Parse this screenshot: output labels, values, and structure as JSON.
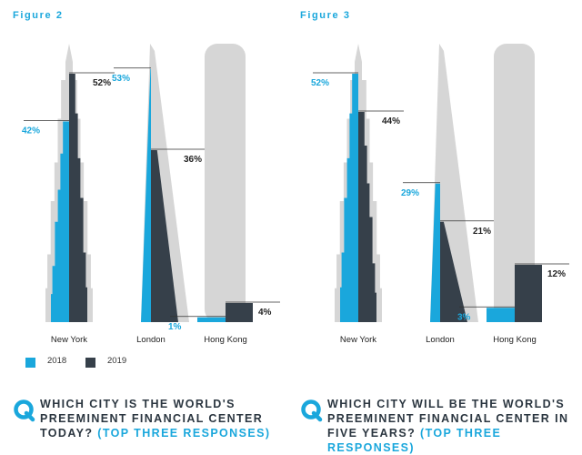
{
  "colors": {
    "series_2018": "#1aa7dc",
    "series_2019": "#36404a",
    "silhouette": "#d6d6d6",
    "accent": "#1aa7dc",
    "text": "#2b3640"
  },
  "legend": [
    {
      "label": "2018",
      "color": "#1aa7dc"
    },
    {
      "label": "2019",
      "color": "#36404a"
    }
  ],
  "questions": [
    {
      "icon": "q-icon",
      "line1": "WHICH CITY IS THE WORLD'S",
      "line2": "PREEMINENT FINANCIAL CENTER",
      "line3_a": "TODAY? ",
      "line3_b": "(TOP THREE RESPONSES)"
    },
    {
      "icon": "q-icon",
      "line1": "WHICH CITY WILL BE THE WORLD'S",
      "line2": "PREEMINENT FINANCIAL CENTER IN",
      "line3_a": "FIVE YEARS? ",
      "line3_b": "(TOP THREE RESPONSES)"
    }
  ],
  "chart_data": [
    {
      "type": "bar",
      "figure_label": "Figure 2",
      "categories": [
        "New York",
        "London",
        "Hong Kong"
      ],
      "series": [
        {
          "name": "2018",
          "values": [
            42,
            53,
            1
          ],
          "labels": [
            "42%",
            "53%",
            "1%"
          ]
        },
        {
          "name": "2019",
          "values": [
            52,
            36,
            4
          ],
          "labels": [
            "52%",
            "36%",
            "4%"
          ]
        }
      ],
      "unit": "%",
      "ylim": [
        0,
        100
      ],
      "grid": false,
      "legend_position": "bottom-left"
    },
    {
      "type": "bar",
      "figure_label": "Figure 3",
      "categories": [
        "New York",
        "London",
        "Hong Kong"
      ],
      "series": [
        {
          "name": "2018",
          "values": [
            52,
            29,
            3
          ],
          "labels": [
            "52%",
            "29%",
            "3%"
          ]
        },
        {
          "name": "2019",
          "values": [
            44,
            21,
            12
          ],
          "labels": [
            "44%",
            "21%",
            "12%"
          ]
        }
      ],
      "unit": "%",
      "ylim": [
        0,
        100
      ],
      "grid": false
    }
  ]
}
